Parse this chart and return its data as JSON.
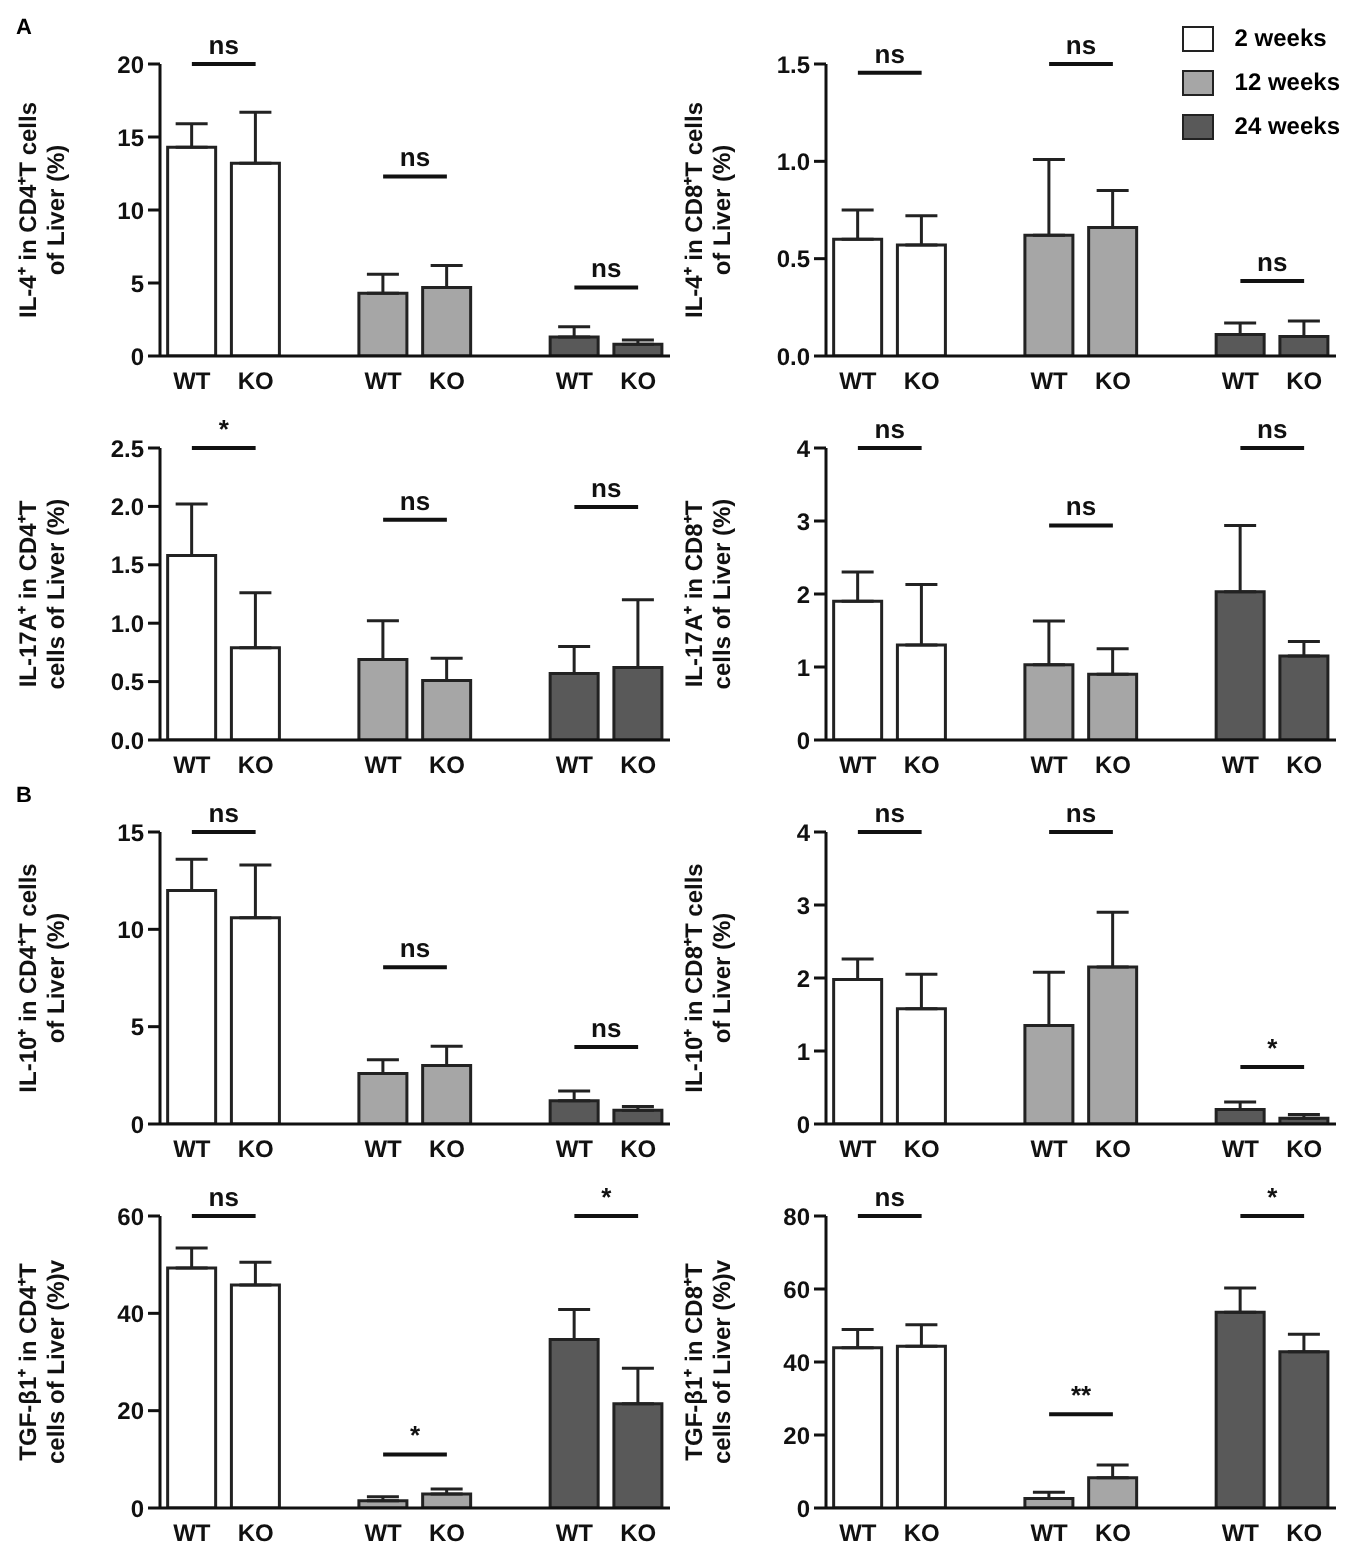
{
  "chart_data": [
    {
      "type": "bar",
      "title": "A",
      "ylabel": "IL-4⁺ in CD4⁺T cells\nof Liver (%)",
      "categories": [
        "WT",
        "KO",
        null,
        "WT",
        "KO",
        null,
        "WT",
        "KO"
      ],
      "ylim": [
        0,
        20
      ],
      "yticks": [
        0,
        5,
        10,
        15,
        20
      ],
      "grid": false,
      "annotations": [
        "ns",
        "ns",
        "ns"
      ],
      "series": [
        {
          "color": "#ffffff",
          "values": [
            14.3,
            13.2,
            null,
            null,
            null,
            null,
            null,
            null
          ],
          "errors": [
            [
              14.3,
              15.9
            ],
            [
              13.2,
              16.7
            ],
            null,
            null,
            null,
            null,
            null,
            null
          ]
        },
        {
          "color": "#a6a6a6",
          "values": [
            null,
            null,
            null,
            4.3,
            4.7,
            null,
            null,
            null
          ],
          "errors": [
            null,
            null,
            null,
            [
              4.3,
              5.6
            ],
            [
              4.7,
              6.2
            ],
            null,
            null,
            null
          ]
        },
        {
          "color": "#595959",
          "values": [
            null,
            null,
            null,
            null,
            null,
            null,
            1.3,
            0.8
          ],
          "errors": [
            null,
            null,
            null,
            null,
            null,
            null,
            [
              1.3,
              2.0
            ],
            [
              0.8,
              1.1
            ]
          ]
        }
      ]
    },
    {
      "type": "bar",
      "ylabel": "IL-4⁺ in CD8⁺T cells\nof Liver (%)",
      "categories": [
        "WT",
        "KO",
        null,
        "WT",
        "KO",
        null,
        "WT",
        "KO"
      ],
      "ylim": [
        0,
        1.5
      ],
      "yticks": [
        {
          "value": 0,
          "label": "0.0"
        },
        {
          "value": 0.5,
          "label": "0.5"
        },
        {
          "value": 1,
          "label": "1.0"
        },
        {
          "value": 1.5,
          "label": "1.5"
        }
      ],
      "grid": false,
      "legend": "top right",
      "annotations": [
        "ns",
        "ns",
        "ns"
      ],
      "series": [
        {
          "name": "2 weeks",
          "color": "#ffffff",
          "values": [
            0.6,
            0.57,
            null,
            null,
            null,
            null,
            null,
            null
          ],
          "errors": [
            [
              0.6,
              0.75
            ],
            [
              0.57,
              0.72
            ],
            null,
            null,
            null,
            null,
            null,
            null
          ]
        },
        {
          "name": "12 weeks",
          "color": "#a6a6a6",
          "values": [
            null,
            null,
            null,
            0.62,
            0.66,
            null,
            null,
            null
          ],
          "errors": [
            null,
            null,
            null,
            [
              0.62,
              1.01
            ],
            [
              0.66,
              0.85
            ],
            null,
            null,
            null
          ]
        },
        {
          "name": "24 weeks",
          "color": "#595959",
          "values": [
            null,
            null,
            null,
            null,
            null,
            null,
            0.11,
            0.1
          ],
          "errors": [
            null,
            null,
            null,
            null,
            null,
            null,
            [
              0.11,
              0.17
            ],
            [
              0.1,
              0.18
            ]
          ]
        }
      ]
    },
    {
      "type": "bar",
      "ylabel": "IL-17A⁺ in CD4⁺T\ncells of Liver (%)",
      "categories": [
        "WT",
        "KO",
        null,
        "WT",
        "KO",
        null,
        "WT",
        "KO"
      ],
      "ylim": [
        0,
        2.5
      ],
      "yticks": [
        {
          "value": 0,
          "label": "0.0"
        },
        {
          "value": 0.5,
          "label": "0.5"
        },
        {
          "value": 1,
          "label": "1.0"
        },
        {
          "value": 1.5,
          "label": "1.5"
        },
        {
          "value": 2,
          "label": "2.0"
        },
        {
          "value": 2.5,
          "label": "2.5"
        }
      ],
      "grid": false,
      "annotations": [
        "*",
        "ns",
        "ns"
      ],
      "series": [
        {
          "color": "#ffffff",
          "values": [
            1.58,
            0.79,
            null,
            null,
            null,
            null,
            null,
            null
          ],
          "errors": [
            [
              1.58,
              2.02
            ],
            [
              0.79,
              1.26
            ],
            null,
            null,
            null,
            null,
            null,
            null
          ]
        },
        {
          "color": "#a6a6a6",
          "values": [
            null,
            null,
            null,
            0.69,
            0.51,
            null,
            null,
            null
          ],
          "errors": [
            null,
            null,
            null,
            [
              0.69,
              1.02
            ],
            [
              0.51,
              0.7
            ],
            null,
            null,
            null
          ]
        },
        {
          "color": "#595959",
          "values": [
            null,
            null,
            null,
            null,
            null,
            null,
            0.57,
            0.62
          ],
          "errors": [
            null,
            null,
            null,
            null,
            null,
            null,
            [
              0.57,
              0.8
            ],
            [
              0.62,
              1.2
            ]
          ]
        }
      ]
    },
    {
      "type": "bar",
      "ylabel": "IL-17A⁺ in CD8⁺T\ncells of Liver (%)",
      "categories": [
        "WT",
        "KO",
        null,
        "WT",
        "KO",
        null,
        "WT",
        "KO"
      ],
      "ylim": [
        0,
        4
      ],
      "yticks": [
        0,
        1,
        2,
        3,
        4
      ],
      "grid": false,
      "annotations": [
        "ns",
        "ns",
        "ns"
      ],
      "series": [
        {
          "color": "#ffffff",
          "values": [
            1.9,
            1.3,
            null,
            null,
            null,
            null,
            null,
            null
          ],
          "errors": [
            [
              1.9,
              2.3
            ],
            [
              1.3,
              2.13
            ],
            null,
            null,
            null,
            null,
            null,
            null
          ]
        },
        {
          "color": "#a6a6a6",
          "values": [
            null,
            null,
            null,
            1.03,
            0.9,
            null,
            null,
            null
          ],
          "errors": [
            null,
            null,
            null,
            [
              1.03,
              1.63
            ],
            [
              0.9,
              1.25
            ],
            null,
            null,
            null
          ]
        },
        {
          "color": "#595959",
          "values": [
            null,
            null,
            null,
            null,
            null,
            null,
            2.03,
            1.15
          ],
          "errors": [
            null,
            null,
            null,
            null,
            null,
            null,
            [
              2.03,
              2.94
            ],
            [
              1.15,
              1.35
            ]
          ]
        }
      ]
    },
    {
      "type": "bar",
      "title": "B",
      "ylabel": "IL-10⁺ in CD4⁺T cells\nof Liver (%)",
      "categories": [
        "WT",
        "KO",
        null,
        "WT",
        "KO",
        null,
        "WT",
        "KO"
      ],
      "ylim": [
        0,
        15
      ],
      "yticks": [
        0,
        5,
        10,
        15
      ],
      "grid": false,
      "annotations": [
        "ns",
        "ns",
        "ns"
      ],
      "series": [
        {
          "color": "#ffffff",
          "values": [
            12.0,
            10.6,
            null,
            null,
            null,
            null,
            null,
            null
          ],
          "errors": [
            [
              12.0,
              13.6
            ],
            [
              10.6,
              13.3
            ],
            null,
            null,
            null,
            null,
            null,
            null
          ]
        },
        {
          "color": "#a6a6a6",
          "values": [
            null,
            null,
            null,
            2.6,
            3.0,
            null,
            null,
            null
          ],
          "errors": [
            null,
            null,
            null,
            [
              2.6,
              3.3
            ],
            [
              3.0,
              4.0
            ],
            null,
            null,
            null
          ]
        },
        {
          "color": "#595959",
          "values": [
            null,
            null,
            null,
            null,
            null,
            null,
            1.2,
            0.7
          ],
          "errors": [
            null,
            null,
            null,
            null,
            null,
            null,
            [
              1.2,
              1.7
            ],
            [
              0.7,
              0.9
            ]
          ]
        }
      ]
    },
    {
      "type": "bar",
      "ylabel": "IL-10⁺ in CD8⁺T cells\nof Liver (%)",
      "categories": [
        "WT",
        "KO",
        null,
        "WT",
        "KO",
        null,
        "WT",
        "KO"
      ],
      "ylim": [
        0,
        4
      ],
      "yticks": [
        0,
        1,
        2,
        3,
        4
      ],
      "grid": false,
      "annotations": [
        "ns",
        "ns",
        "*"
      ],
      "series": [
        {
          "color": "#ffffff",
          "values": [
            1.98,
            1.58,
            null,
            null,
            null,
            null,
            null,
            null
          ],
          "errors": [
            [
              1.98,
              2.26
            ],
            [
              1.58,
              2.05
            ],
            null,
            null,
            null,
            null,
            null,
            null
          ]
        },
        {
          "color": "#a6a6a6",
          "values": [
            null,
            null,
            null,
            1.35,
            2.15,
            null,
            null,
            null
          ],
          "errors": [
            null,
            null,
            null,
            [
              1.35,
              2.08
            ],
            [
              2.15,
              2.9
            ],
            null,
            null,
            null
          ]
        },
        {
          "color": "#595959",
          "values": [
            null,
            null,
            null,
            null,
            null,
            null,
            0.2,
            0.08
          ],
          "errors": [
            null,
            null,
            null,
            null,
            null,
            null,
            [
              0.2,
              0.3
            ],
            [
              0.08,
              0.13
            ]
          ]
        }
      ]
    },
    {
      "type": "bar",
      "ylabel": "TGF-β1⁺ in CD4⁺T\ncells of Liver (%)v",
      "categories": [
        "WT",
        "KO",
        null,
        "WT",
        "KO",
        null,
        "WT",
        "KO"
      ],
      "ylim": [
        0,
        60
      ],
      "yticks": [
        0,
        20,
        40,
        60
      ],
      "grid": false,
      "annotations": [
        "ns",
        "*",
        "*"
      ],
      "series": [
        {
          "color": "#ffffff",
          "values": [
            49.3,
            45.8,
            null,
            null,
            null,
            null,
            null,
            null
          ],
          "errors": [
            [
              49.3,
              53.4
            ],
            [
              45.8,
              50.5
            ],
            null,
            null,
            null,
            null,
            null,
            null
          ]
        },
        {
          "color": "#a6a6a6",
          "values": [
            null,
            null,
            null,
            1.5,
            2.9,
            null,
            null,
            null
          ],
          "errors": [
            null,
            null,
            null,
            [
              1.5,
              2.3
            ],
            [
              2.9,
              3.9
            ],
            null,
            null,
            null
          ]
        },
        {
          "color": "#595959",
          "values": [
            null,
            null,
            null,
            null,
            null,
            null,
            34.6,
            21.4
          ],
          "errors": [
            null,
            null,
            null,
            null,
            null,
            null,
            [
              34.6,
              40.8
            ],
            [
              21.4,
              28.7
            ]
          ]
        }
      ]
    },
    {
      "type": "bar",
      "ylabel": "TGF-β1⁺ in CD8⁺T\ncells of Liver (%)v",
      "categories": [
        "WT",
        "KO",
        null,
        "WT",
        "KO",
        null,
        "WT",
        "KO"
      ],
      "ylim": [
        0,
        80
      ],
      "yticks": [
        0,
        20,
        40,
        60,
        80
      ],
      "grid": false,
      "annotations": [
        "ns",
        "**",
        "*"
      ],
      "series": [
        {
          "color": "#ffffff",
          "values": [
            43.9,
            44.3,
            null,
            null,
            null,
            null,
            null,
            null
          ],
          "errors": [
            [
              43.9,
              48.9
            ],
            [
              44.3,
              50.2
            ],
            null,
            null,
            null,
            null,
            null,
            null
          ]
        },
        {
          "color": "#a6a6a6",
          "values": [
            null,
            null,
            null,
            2.6,
            8.3,
            null,
            null,
            null
          ],
          "errors": [
            null,
            null,
            null,
            [
              2.6,
              4.3
            ],
            [
              8.3,
              11.8
            ],
            null,
            null,
            null
          ]
        },
        {
          "color": "#595959",
          "values": [
            null,
            null,
            null,
            null,
            null,
            null,
            53.6,
            42.8
          ],
          "errors": [
            null,
            null,
            null,
            null,
            null,
            null,
            [
              53.6,
              60.3
            ],
            [
              42.8,
              47.6
            ]
          ]
        }
      ]
    }
  ]
}
